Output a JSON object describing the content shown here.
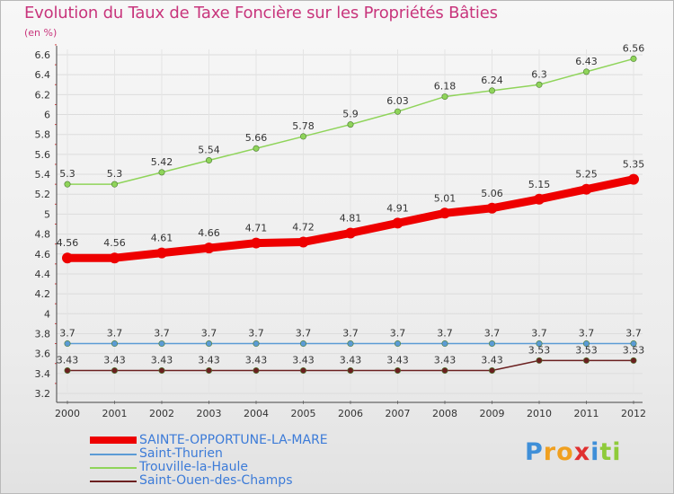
{
  "header": {
    "title": "Evolution du Taux de Taxe Foncière sur les Propriétés Bâties",
    "unit": "(en %)"
  },
  "chart_data": {
    "type": "line",
    "x": [
      "2000",
      "2001",
      "2002",
      "2003",
      "2004",
      "2005",
      "2006",
      "2007",
      "2008",
      "2009",
      "2010",
      "2011",
      "2012"
    ],
    "ylim": [
      3.2,
      6.6
    ],
    "yticks": [
      "3.2",
      "3.4",
      "3.6",
      "3.8",
      "4",
      "4.2",
      "4.4",
      "4.6",
      "4.8",
      "5",
      "5.2",
      "5.4",
      "5.6",
      "5.8",
      "6",
      "6.2",
      "6.4",
      "6.6"
    ],
    "series": [
      {
        "name": "Trouville-la-Haule",
        "color": "#8fd45a",
        "values": [
          5.3,
          5.3,
          5.42,
          5.54,
          5.66,
          5.78,
          5.9,
          6.03,
          6.18,
          6.24,
          6.3,
          6.43,
          6.56
        ]
      },
      {
        "name": "SAINTE-OPPORTUNE-LA-MARE",
        "color": "#ee0000",
        "values": [
          4.56,
          4.56,
          4.61,
          4.66,
          4.71,
          4.72,
          4.81,
          4.91,
          5.01,
          5.06,
          5.15,
          5.25,
          5.35
        ]
      },
      {
        "name": "Saint-Thurien",
        "color": "#5b9bd5",
        "values": [
          3.7,
          3.7,
          3.7,
          3.7,
          3.7,
          3.7,
          3.7,
          3.7,
          3.7,
          3.7,
          3.7,
          3.7,
          3.7
        ]
      },
      {
        "name": "Saint-Ouen-des-Champs",
        "color": "#6b2020",
        "values": [
          3.43,
          3.43,
          3.43,
          3.43,
          3.43,
          3.43,
          3.43,
          3.43,
          3.43,
          3.43,
          3.53,
          3.53,
          3.53
        ]
      }
    ],
    "labels": [
      [
        "5.3",
        "5.3",
        "5.42",
        "5.54",
        "5.66",
        "5.78",
        "5.9",
        "6.03",
        "6.18",
        "6.24",
        "6.3",
        "6.43",
        "6.56"
      ],
      [
        "4.56",
        "4.56",
        "4.61",
        "4.66",
        "4.71",
        "4.72",
        "4.81",
        "4.91",
        "5.01",
        "5.06",
        "5.15",
        "5.25",
        "5.35"
      ],
      [
        "3.7",
        "3.7",
        "3.7",
        "3.7",
        "3.7",
        "3.7",
        "3.7",
        "3.7",
        "3.7",
        "3.7",
        "3.7",
        "3.7",
        "3.7"
      ],
      [
        "3.43",
        "3.43",
        "3.43",
        "3.43",
        "3.43",
        "3.43",
        "3.43",
        "3.43",
        "3.43",
        "3.43",
        "3.53",
        "3.53",
        "3.53"
      ]
    ]
  },
  "legend": {
    "items": [
      {
        "label": "SAINTE-OPPORTUNE-LA-MARE",
        "color": "#ee0000"
      },
      {
        "label": "Saint-Thurien",
        "color": "#5b9bd5"
      },
      {
        "label": "Trouville-la-Haule",
        "color": "#8fd45a"
      },
      {
        "label": "Saint-Ouen-des-Champs",
        "color": "#6b2020"
      }
    ]
  },
  "logo": {
    "text": "Proxiti",
    "letters": [
      {
        "ch": "P",
        "color": "#3f8fd8"
      },
      {
        "ch": "r",
        "color": "#f0a020"
      },
      {
        "ch": "o",
        "color": "#f0a020"
      },
      {
        "ch": "x",
        "color": "#e03030"
      },
      {
        "ch": "i",
        "color": "#3f8fd8"
      },
      {
        "ch": "t",
        "color": "#8fcb3a"
      },
      {
        "ch": "i",
        "color": "#8fcb3a"
      }
    ]
  }
}
